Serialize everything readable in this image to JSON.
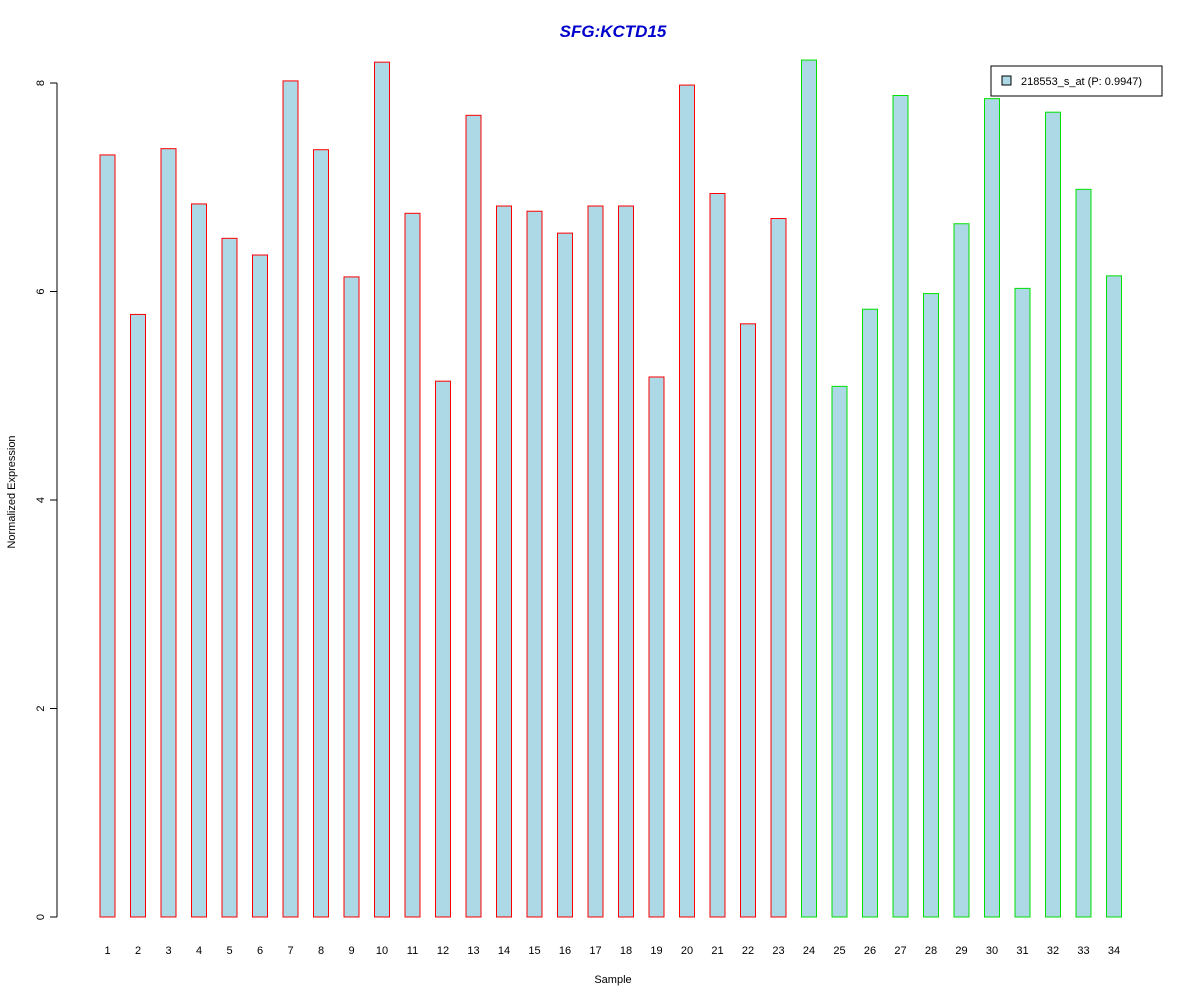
{
  "chart_data": {
    "type": "bar",
    "title": "SFG:KCTD15",
    "xlabel": "Sample",
    "ylabel": "Normalized Expression",
    "ylim": [
      0,
      8
    ],
    "yticks": [
      0,
      2,
      4,
      6,
      8
    ],
    "grid": false,
    "legend_position": "top-right",
    "categories": [
      "1",
      "2",
      "3",
      "4",
      "5",
      "6",
      "7",
      "8",
      "9",
      "10",
      "11",
      "12",
      "13",
      "14",
      "15",
      "16",
      "17",
      "18",
      "19",
      "20",
      "21",
      "22",
      "23",
      "24",
      "25",
      "26",
      "27",
      "28",
      "29",
      "30",
      "31",
      "32",
      "33",
      "34"
    ],
    "series": [
      {
        "name": "218553_s_at (P: 0.9947)",
        "values": [
          7.31,
          5.78,
          7.37,
          6.84,
          6.51,
          6.35,
          8.02,
          7.36,
          6.14,
          8.2,
          6.75,
          5.14,
          7.69,
          6.82,
          6.77,
          6.56,
          6.82,
          6.82,
          5.18,
          7.98,
          6.94,
          5.69,
          6.7,
          8.22,
          5.09,
          5.83,
          7.88,
          5.98,
          6.65,
          7.85,
          6.03,
          7.72,
          6.98,
          6.15
        ]
      }
    ],
    "group_edge_colors": [
      "#ff0000",
      "#ff0000",
      "#ff0000",
      "#ff0000",
      "#ff0000",
      "#ff0000",
      "#ff0000",
      "#ff0000",
      "#ff0000",
      "#ff0000",
      "#ff0000",
      "#ff0000",
      "#ff0000",
      "#ff0000",
      "#ff0000",
      "#ff0000",
      "#ff0000",
      "#ff0000",
      "#ff0000",
      "#ff0000",
      "#ff0000",
      "#ff0000",
      "#ff0000",
      "#00e000",
      "#00e000",
      "#00e000",
      "#00e000",
      "#00e000",
      "#00e000",
      "#00e000",
      "#00e000",
      "#00e000",
      "#00e000",
      "#00e000"
    ],
    "colors": {
      "bar_fill": "#add8e6",
      "title": "#0000cd",
      "axis": "#000000"
    }
  }
}
